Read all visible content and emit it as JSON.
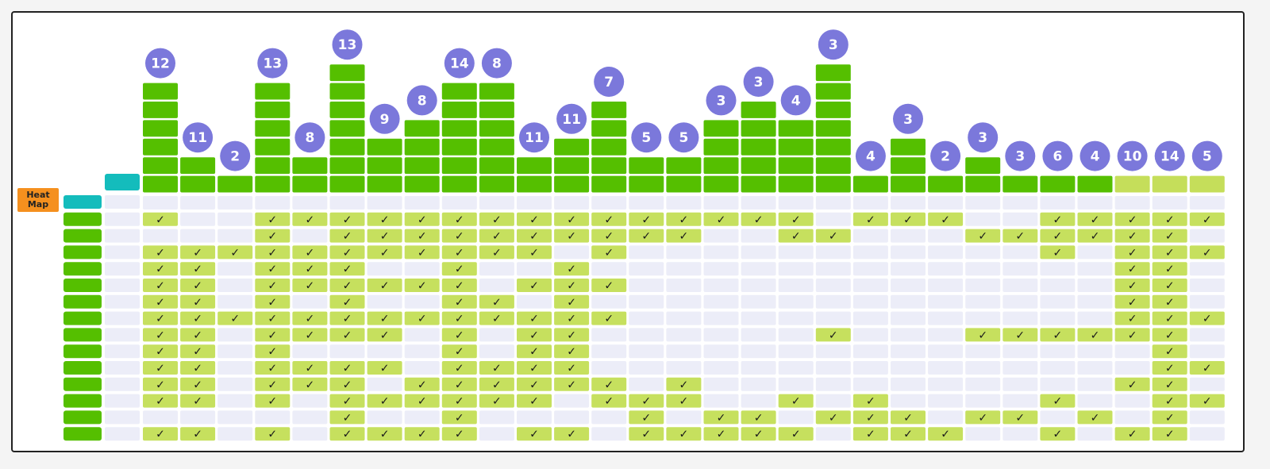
{
  "chart_data": {
    "type": "heatmap",
    "heat_map_label": "Heat\nMap",
    "column_counts": [
      12,
      11,
      2,
      13,
      8,
      13,
      9,
      8,
      14,
      8,
      11,
      11,
      7,
      5,
      5,
      3,
      3,
      4,
      3,
      4,
      3,
      2,
      3,
      3,
      6,
      4,
      10,
      14,
      5
    ],
    "column_stack_heights": [
      6,
      2,
      1,
      6,
      2,
      7,
      3,
      4,
      6,
      6,
      2,
      3,
      5,
      2,
      2,
      4,
      5,
      4,
      7,
      1,
      3,
      1,
      2,
      1,
      1,
      1,
      1,
      1,
      1
    ],
    "column_highlight": [
      false,
      false,
      false,
      false,
      false,
      false,
      false,
      false,
      false,
      false,
      false,
      false,
      false,
      false,
      false,
      false,
      false,
      false,
      false,
      false,
      false,
      false,
      false,
      false,
      false,
      false,
      true,
      true,
      true
    ],
    "row_count": 14,
    "check_symbol": "✓",
    "matrix": [
      [
        1,
        0,
        0,
        1,
        1,
        1,
        1,
        1,
        1,
        1,
        1,
        1,
        1,
        1,
        1,
        1,
        1,
        1,
        0,
        1,
        1,
        1,
        0,
        0,
        1,
        1,
        1,
        1,
        1
      ],
      [
        0,
        0,
        0,
        1,
        0,
        1,
        1,
        1,
        1,
        1,
        1,
        1,
        1,
        1,
        1,
        0,
        0,
        1,
        1,
        0,
        0,
        0,
        1,
        1,
        1,
        1,
        1,
        1,
        0
      ],
      [
        1,
        1,
        1,
        1,
        1,
        1,
        1,
        1,
        1,
        1,
        1,
        0,
        1,
        0,
        0,
        0,
        0,
        0,
        0,
        0,
        0,
        0,
        0,
        0,
        1,
        0,
        1,
        1,
        1
      ],
      [
        1,
        1,
        0,
        1,
        1,
        1,
        0,
        0,
        1,
        0,
        0,
        1,
        0,
        0,
        0,
        0,
        0,
        0,
        0,
        0,
        0,
        0,
        0,
        0,
        0,
        0,
        1,
        1,
        0
      ],
      [
        1,
        1,
        0,
        1,
        1,
        1,
        1,
        1,
        1,
        0,
        1,
        1,
        1,
        0,
        0,
        0,
        0,
        0,
        0,
        0,
        0,
        0,
        0,
        0,
        0,
        0,
        1,
        1,
        0
      ],
      [
        1,
        1,
        0,
        1,
        0,
        1,
        0,
        0,
        1,
        1,
        0,
        1,
        0,
        0,
        0,
        0,
        0,
        0,
        0,
        0,
        0,
        0,
        0,
        0,
        0,
        0,
        1,
        1,
        0
      ],
      [
        1,
        1,
        1,
        1,
        1,
        1,
        1,
        1,
        1,
        1,
        1,
        1,
        1,
        0,
        0,
        0,
        0,
        0,
        0,
        0,
        0,
        0,
        0,
        0,
        0,
        0,
        1,
        1,
        1
      ],
      [
        1,
        1,
        0,
        1,
        1,
        1,
        1,
        0,
        1,
        0,
        1,
        1,
        0,
        0,
        0,
        0,
        0,
        0,
        1,
        0,
        0,
        0,
        1,
        1,
        1,
        1,
        1,
        1,
        0
      ],
      [
        1,
        1,
        0,
        1,
        0,
        0,
        0,
        0,
        1,
        0,
        1,
        1,
        0,
        0,
        0,
        0,
        0,
        0,
        0,
        0,
        0,
        0,
        0,
        0,
        0,
        0,
        0,
        1,
        0
      ],
      [
        1,
        1,
        0,
        1,
        1,
        1,
        1,
        0,
        1,
        1,
        1,
        1,
        0,
        0,
        0,
        0,
        0,
        0,
        0,
        0,
        0,
        0,
        0,
        0,
        0,
        0,
        0,
        1,
        1
      ],
      [
        1,
        1,
        0,
        1,
        1,
        1,
        0,
        1,
        1,
        1,
        1,
        1,
        1,
        0,
        1,
        0,
        0,
        0,
        0,
        0,
        0,
        0,
        0,
        0,
        0,
        0,
        1,
        1,
        0
      ],
      [
        1,
        1,
        0,
        1,
        0,
        1,
        1,
        1,
        1,
        1,
        1,
        0,
        1,
        1,
        1,
        0,
        0,
        1,
        0,
        1,
        0,
        0,
        0,
        0,
        1,
        0,
        0,
        1,
        1
      ],
      [
        0,
        0,
        0,
        0,
        0,
        1,
        0,
        0,
        1,
        0,
        0,
        0,
        0,
        1,
        0,
        1,
        1,
        0,
        1,
        1,
        1,
        0,
        1,
        1,
        0,
        1,
        0,
        1,
        0
      ],
      [
        1,
        1,
        0,
        1,
        0,
        1,
        1,
        1,
        1,
        0,
        1,
        1,
        0,
        1,
        1,
        1,
        1,
        1,
        0,
        1,
        1,
        1,
        0,
        0,
        1,
        0,
        1,
        1,
        0
      ]
    ],
    "colors": {
      "bar_green": "#55bf00",
      "bar_light": "#c5de5a",
      "count_circle": "#7b78db",
      "teal": "#14bcbc",
      "check_cell": "#c6e05e",
      "empty_cell": "#ecedf8",
      "heat_map_badge": "#f5901e"
    }
  }
}
